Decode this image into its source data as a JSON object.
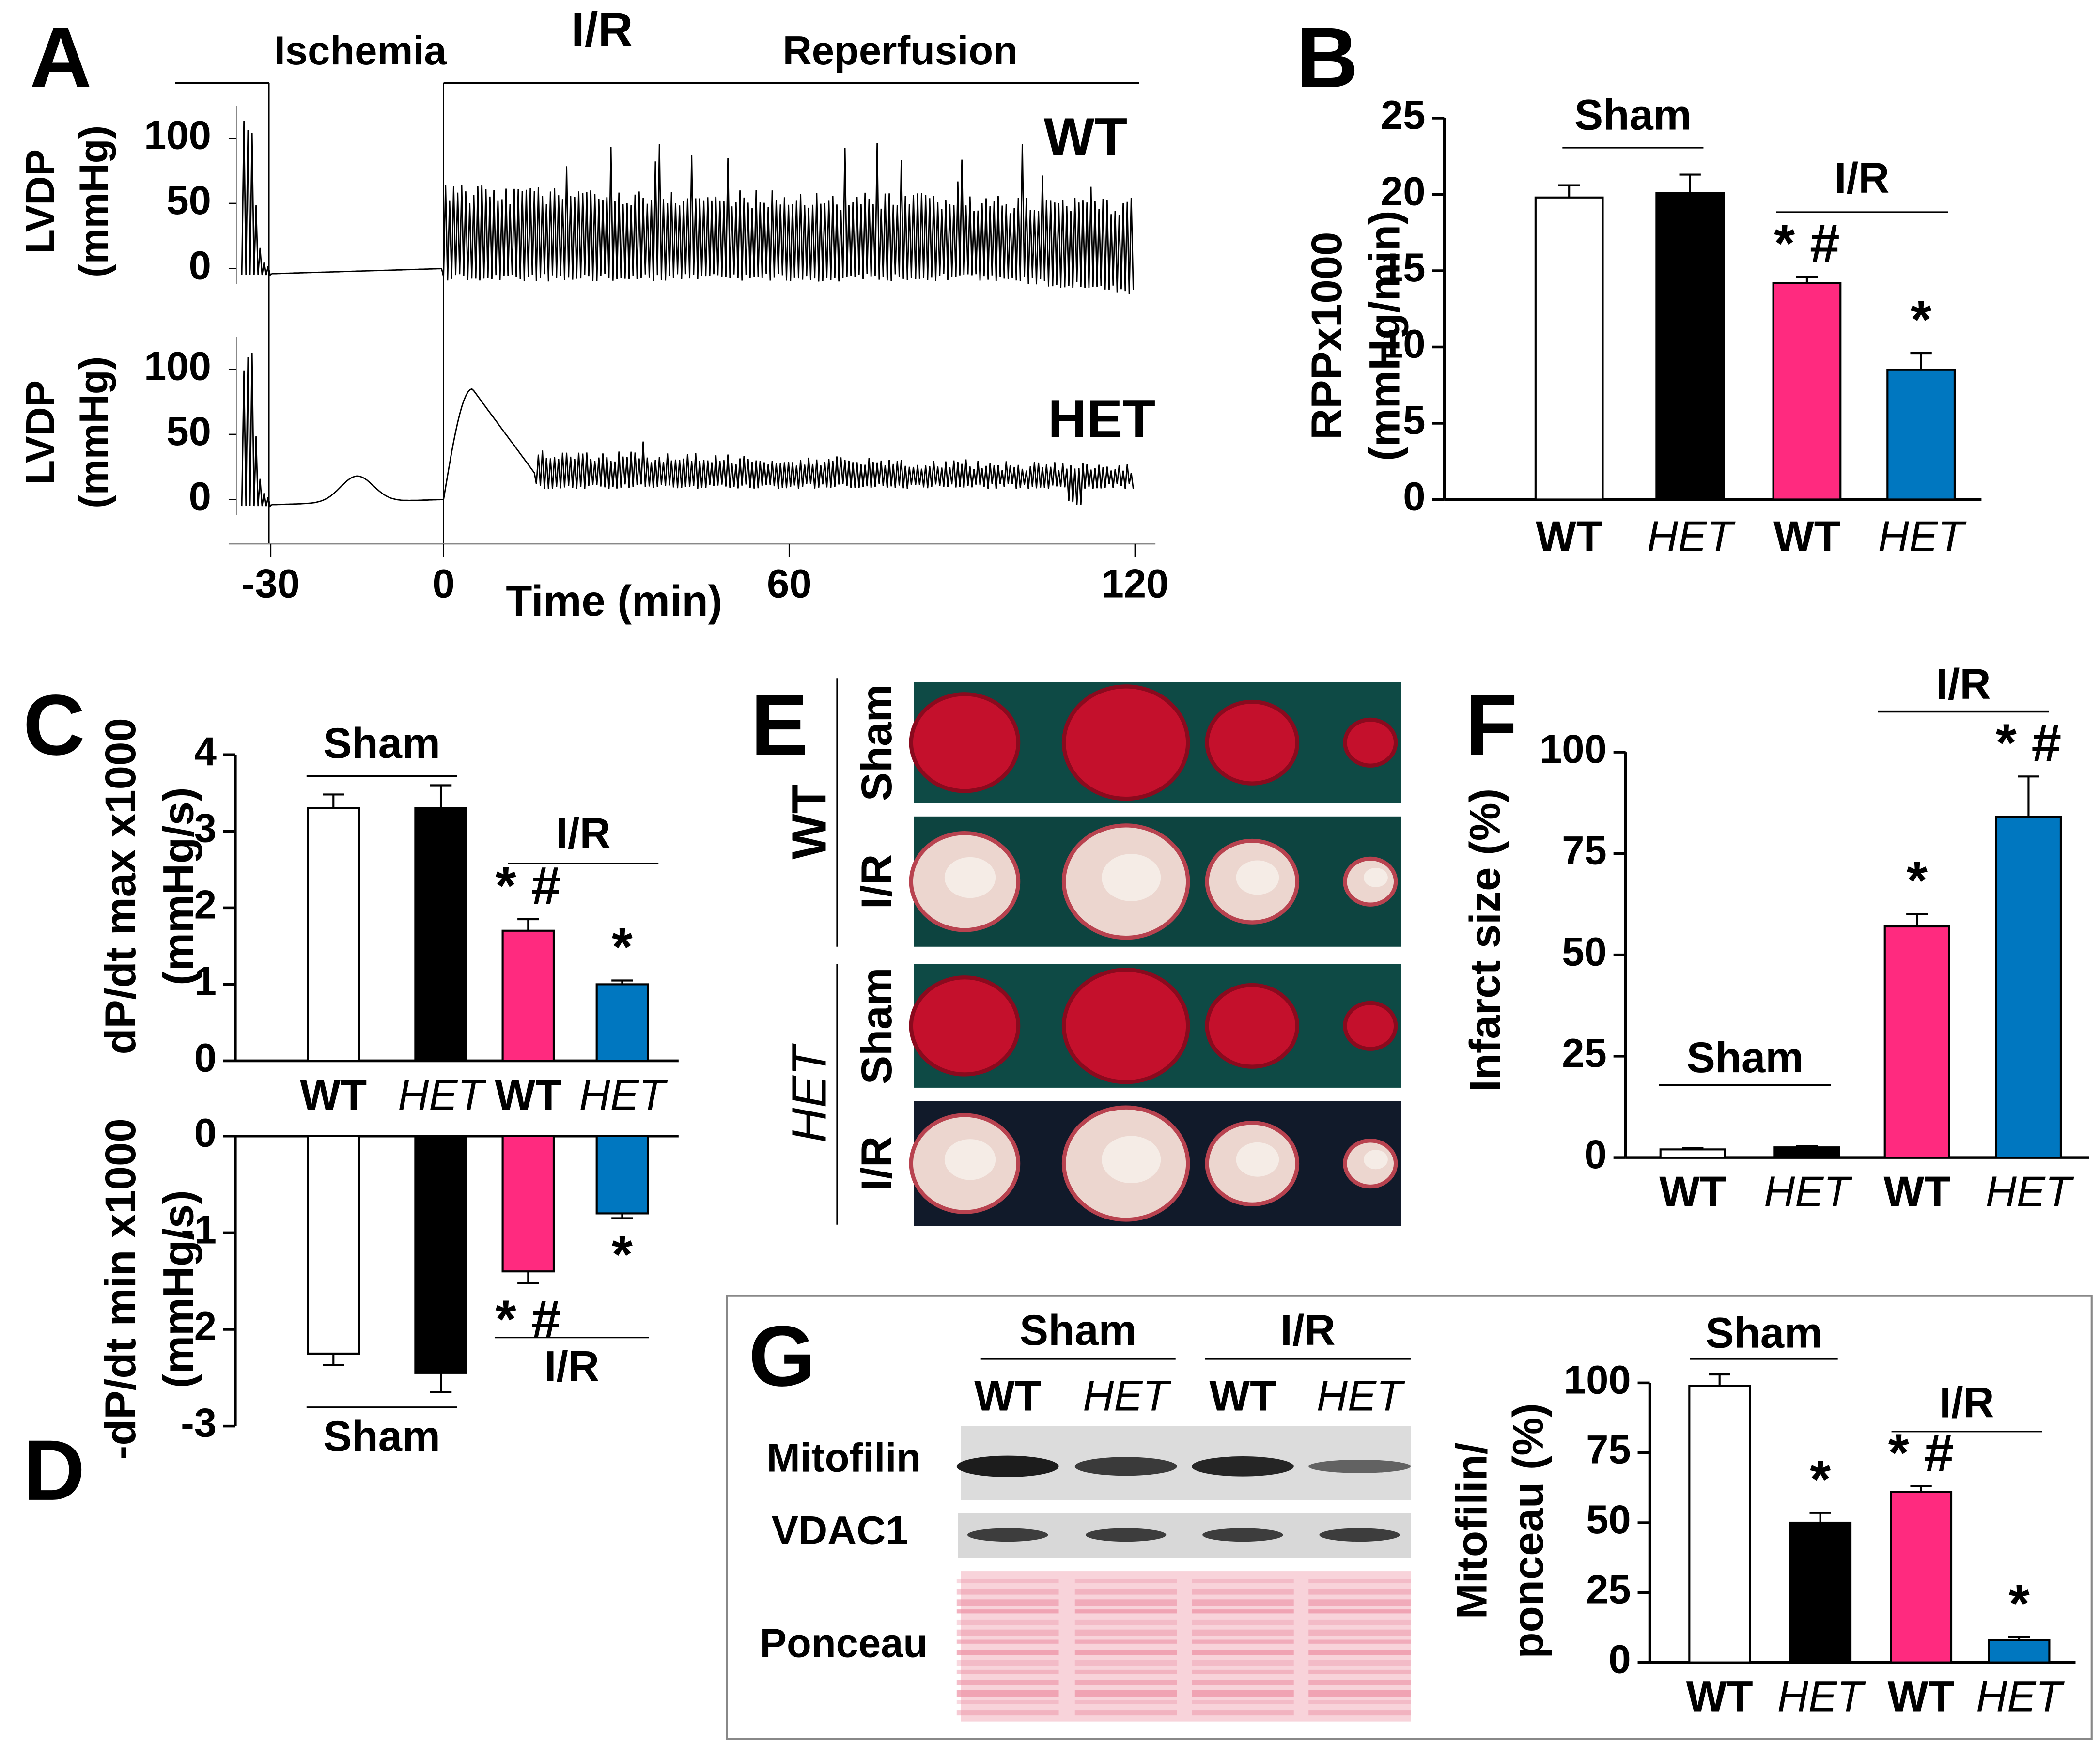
{
  "chart_data": [
    {
      "type": "trace",
      "panel": "A",
      "title": "I/R",
      "phases": [
        "Ischemia",
        "Reperfusion"
      ],
      "traces": [
        {
          "name": "WT",
          "color": "#ff2a7f",
          "ylabel": [
            "LVDP",
            "(mmHg)"
          ]
        },
        {
          "name": "HET",
          "color": "#0077c0",
          "ylabel": [
            "LVDP",
            "(mmHg)"
          ]
        }
      ],
      "yticks": [
        0,
        50,
        100
      ],
      "xlabel": "Time (min)",
      "xlim": [
        -35,
        122
      ],
      "xticks": [
        -30,
        0,
        60,
        120
      ]
    },
    {
      "type": "bar",
      "panel": "B",
      "ylabel": [
        "RPPx1000",
        "(mmHg/min)"
      ],
      "categories": [
        "WT",
        "HET",
        "WT",
        "HET"
      ],
      "italic": [
        false,
        true,
        false,
        true
      ],
      "values": [
        19.8,
        20.1,
        14.2,
        8.5
      ],
      "errors": [
        0.8,
        1.2,
        0.4,
        1.1
      ],
      "colors": [
        "#ffffff",
        "#000000",
        "#ff2a7f",
        "#0077c0"
      ],
      "significance": [
        null,
        null,
        "* #",
        "*"
      ],
      "groups": [
        "Sham",
        "I/R"
      ],
      "ylim": [
        0,
        25
      ],
      "yticks": [
        0,
        5,
        10,
        15,
        20,
        25
      ]
    },
    {
      "type": "bar",
      "panel": "C",
      "ylabel": [
        "dP/dt max x1000",
        "(mmHg/s)"
      ],
      "categories": [
        "WT",
        "HET",
        "WT",
        "HET"
      ],
      "italic": [
        false,
        true,
        false,
        true
      ],
      "values": [
        3.3,
        3.3,
        1.7,
        1.0
      ],
      "errors": [
        0.18,
        0.3,
        0.15,
        0.05
      ],
      "colors": [
        "#ffffff",
        "#000000",
        "#ff2a7f",
        "#0077c0"
      ],
      "significance": [
        null,
        null,
        "* #",
        "*"
      ],
      "groups": [
        "Sham",
        "I/R"
      ],
      "ylim": [
        0,
        4
      ],
      "yticks": [
        0,
        1,
        2,
        3,
        4
      ]
    },
    {
      "type": "bar",
      "panel": "D",
      "ylabel": [
        "-dP/dt min x1000",
        "(mmHg/s)"
      ],
      "values": [
        -2.25,
        -2.45,
        -1.4,
        -0.8
      ],
      "errors": [
        0.12,
        0.2,
        0.12,
        0.05
      ],
      "colors": [
        "#ffffff",
        "#000000",
        "#ff2a7f",
        "#0077c0"
      ],
      "significance": [
        null,
        null,
        "* #",
        "*"
      ],
      "groups": [
        "Sham",
        "I/R"
      ],
      "ylim": [
        -3,
        0
      ],
      "yticks": [
        0,
        -1,
        -2,
        -3
      ]
    },
    {
      "type": "bar",
      "panel": "F",
      "ylabel": [
        "Infarct size  (%)"
      ],
      "categories": [
        "WT",
        "HET",
        "WT",
        "HET"
      ],
      "italic": [
        false,
        true,
        false,
        true
      ],
      "values": [
        2,
        2.5,
        57,
        84
      ],
      "errors": [
        0.3,
        0.3,
        3,
        10
      ],
      "colors": [
        "#ffffff",
        "#000000",
        "#ff2a7f",
        "#0077c0"
      ],
      "significance": [
        null,
        null,
        "*",
        "* #"
      ],
      "groups": [
        "Sham",
        "I/R"
      ],
      "ylim": [
        0,
        107
      ],
      "yticks": [
        0,
        25,
        50,
        75,
        100
      ]
    },
    {
      "type": "bar",
      "ylabel": [
        "Mitofilin/",
        "ponceau (%)"
      ],
      "categories": [
        "WT",
        "HET",
        "WT",
        "HET"
      ],
      "italic": [
        false,
        true,
        false,
        true
      ],
      "values": [
        99,
        50,
        61,
        8
      ],
      "errors": [
        4,
        3.5,
        2,
        1
      ],
      "colors": [
        "#ffffff",
        "#000000",
        "#ff2a7f",
        "#0077c0"
      ],
      "significance": [
        null,
        "*",
        "* #",
        "*"
      ],
      "groups": [
        "Sham",
        "I/R"
      ],
      "ylim": [
        0,
        110
      ],
      "yticks": [
        0,
        25,
        50,
        75,
        100
      ]
    }
  ],
  "panel_e": {
    "panel": "E",
    "groups": [
      "WT",
      "HET"
    ],
    "italic": [
      false,
      true
    ],
    "rows": [
      "Sham",
      "I/R"
    ]
  },
  "panel_g_blot": {
    "panel": "G",
    "groups": [
      "Sham",
      "I/R"
    ],
    "lanes": [
      "WT",
      "HET",
      "WT",
      "HET"
    ],
    "italic": [
      false,
      true,
      false,
      true
    ],
    "rows": [
      "Mitofilin",
      "VDAC1",
      "Ponceau"
    ]
  }
}
